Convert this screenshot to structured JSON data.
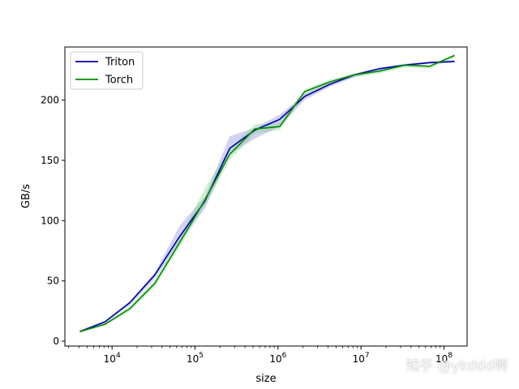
{
  "chart_data": {
    "type": "line",
    "xlabel": "size",
    "ylabel": "GB/s",
    "xscale": "log",
    "xlim": [
      2700,
      190000000
    ],
    "ylim": [
      -4,
      244
    ],
    "yticks": [
      0,
      50,
      100,
      150,
      200
    ],
    "xticks": [
      {
        "value": 10000,
        "base": "10",
        "exp": "4"
      },
      {
        "value": 100000,
        "base": "10",
        "exp": "5"
      },
      {
        "value": 1000000,
        "base": "10",
        "exp": "6"
      },
      {
        "value": 10000000,
        "base": "10",
        "exp": "7"
      },
      {
        "value": 100000000,
        "base": "10",
        "exp": "8"
      }
    ],
    "legend_position": "top-left",
    "grid": false,
    "x": [
      4096,
      8192,
      16384,
      32768,
      65536,
      131072,
      262144,
      524288,
      1048576,
      2097152,
      4194304,
      8388608,
      16777216,
      33554432,
      67108864,
      134217728
    ],
    "series": [
      {
        "name": "Triton",
        "color": "#0000aa",
        "band_color": "#6a6ad8",
        "values": [
          8,
          16,
          32,
          55,
          87,
          116,
          160,
          175,
          184,
          203,
          213,
          221,
          226,
          229,
          231,
          232
        ],
        "lower": [
          7,
          15,
          30,
          52,
          83,
          110,
          155,
          168,
          178,
          200,
          211,
          219,
          224,
          228,
          230,
          231
        ],
        "upper": [
          9,
          17,
          33,
          57,
          96,
          120,
          170,
          177,
          188,
          205,
          215,
          222,
          227,
          230,
          232,
          233
        ]
      },
      {
        "name": "Torch",
        "color": "#008800",
        "band_color": "#70d070",
        "values": [
          8,
          14,
          27,
          48,
          82,
          117,
          155,
          176,
          178,
          207,
          215,
          221,
          224,
          229,
          228,
          237
        ],
        "lower": [
          7,
          13,
          25,
          45,
          78,
          112,
          150,
          172,
          175,
          204,
          213,
          219,
          222,
          227,
          226,
          235
        ],
        "upper": [
          9,
          15,
          29,
          51,
          86,
          127,
          160,
          180,
          181,
          209,
          217,
          222,
          225,
          230,
          229,
          238
        ]
      }
    ]
  },
  "watermark": "知乎 @ykddd啊"
}
